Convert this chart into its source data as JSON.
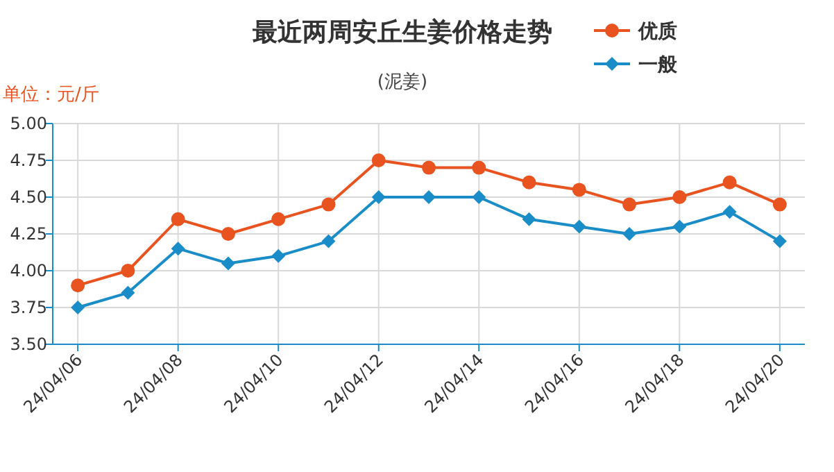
{
  "chart_data": {
    "type": "line",
    "title": "最近两周安丘生姜价格走势",
    "subtitle": "(泥姜)",
    "annotations": [
      "单位：元/斤"
    ],
    "categories": [
      "24/04/06",
      null,
      "24/04/08",
      null,
      "24/04/10",
      null,
      "24/04/12",
      null,
      "24/04/14",
      null,
      "24/04/16",
      null,
      "24/04/18",
      null,
      "24/04/20"
    ],
    "series": [
      {
        "name": "优质",
        "color": "#e8531f",
        "marker": "circle",
        "values": [
          3.9,
          4.0,
          4.35,
          4.25,
          4.35,
          4.45,
          4.75,
          4.7,
          4.7,
          4.6,
          4.55,
          4.45,
          4.5,
          4.6,
          4.45
        ]
      },
      {
        "name": "一般",
        "color": "#1a8cc8",
        "marker": "diamond",
        "values": [
          3.75,
          3.85,
          4.15,
          4.05,
          4.1,
          4.2,
          4.5,
          4.5,
          4.5,
          4.35,
          4.3,
          4.25,
          4.3,
          4.4,
          4.2
        ]
      }
    ],
    "ylim": [
      3.5,
      5.0
    ],
    "yticks": [
      {
        "value": 3.5,
        "label": "3.50"
      },
      3.75,
      {
        "value": 4.0,
        "label": "4.00"
      },
      4.25,
      {
        "value": 4.5,
        "label": "4.50"
      },
      4.75,
      {
        "value": 5.0,
        "label": "5.00"
      }
    ],
    "grid": true,
    "legend": "top right",
    "line_style": "solid"
  }
}
